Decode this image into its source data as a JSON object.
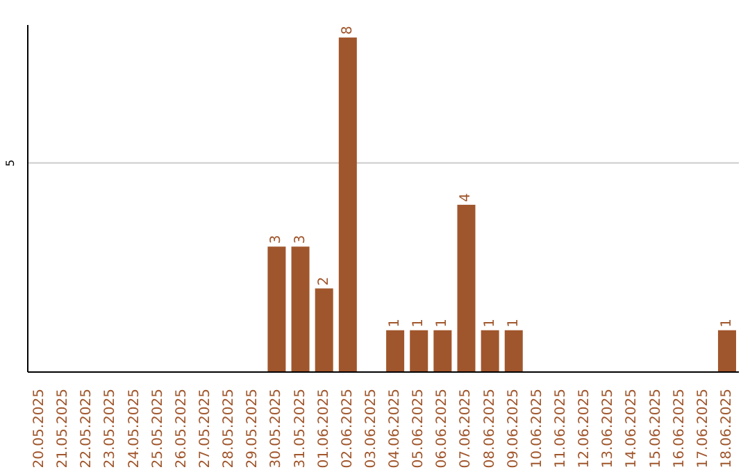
{
  "chart_data": {
    "type": "bar",
    "categories": [
      "20.05.2025",
      "21.05.2025",
      "22.05.2025",
      "23.05.2025",
      "24.05.2025",
      "25.05.2025",
      "26.05.2025",
      "27.05.2025",
      "28.05.2025",
      "29.05.2025",
      "30.05.2025",
      "31.05.2025",
      "01.06.2025",
      "02.06.2025",
      "03.06.2025",
      "04.06.2025",
      "05.06.2025",
      "06.06.2025",
      "07.06.2025",
      "08.06.2025",
      "09.06.2025",
      "10.06.2025",
      "11.06.2025",
      "12.06.2025",
      "13.06.2025",
      "14.06.2025",
      "15.06.2025",
      "16.06.2025",
      "17.06.2025",
      "18.06.2025"
    ],
    "values": [
      0,
      0,
      0,
      0,
      0,
      0,
      0,
      0,
      0,
      0,
      3,
      3,
      2,
      8,
      0,
      1,
      1,
      1,
      4,
      1,
      1,
      0,
      0,
      0,
      0,
      0,
      0,
      0,
      0,
      1
    ],
    "value_labels": [
      null,
      null,
      null,
      null,
      null,
      null,
      null,
      null,
      null,
      null,
      "3",
      "3",
      "2",
      "8",
      null,
      "1",
      "1",
      "1",
      "4",
      "1",
      "1",
      null,
      null,
      null,
      null,
      null,
      null,
      null,
      null,
      "1"
    ],
    "color": "#a0562c",
    "ylim": [
      0,
      8.3
    ],
    "yticks": [
      5
    ],
    "grid": "y"
  }
}
